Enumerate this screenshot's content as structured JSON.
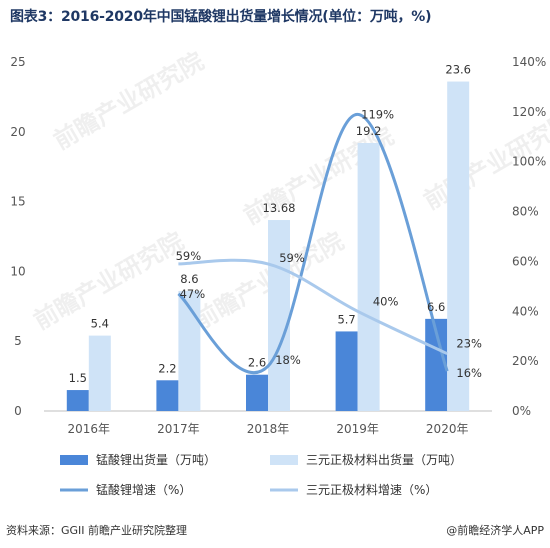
{
  "title": "图表3：2016-2020年中国锰酸锂出货量增长情况(单位：万吨，%)",
  "source": "资料来源：GGII 前瞻产业研究院整理",
  "brand": "@前瞻经济学人APP",
  "watermark": "前瞻产业研究院",
  "chart_data": {
    "type": "bar",
    "categories": [
      "2016年",
      "2017年",
      "2018年",
      "2019年",
      "2020年"
    ],
    "series": [
      {
        "name": "锰酸锂出货量（万吨）",
        "kind": "bar",
        "axis": "left",
        "color": "#4a86d8",
        "values": [
          1.5,
          2.2,
          2.6,
          5.7,
          6.6
        ],
        "labels": [
          "1.5",
          "2.2",
          "2.6",
          "5.7",
          "6.6"
        ]
      },
      {
        "name": "三元正极材料出货量（万吨）",
        "kind": "bar",
        "axis": "left",
        "color": "#cfe3f7",
        "values": [
          5.4,
          8.6,
          13.68,
          19.2,
          23.6
        ],
        "labels": [
          "5.4",
          "8.6",
          "13.68",
          "19.2",
          "23.6"
        ]
      },
      {
        "name": "锰酸锂增速（%）",
        "kind": "line",
        "axis": "right",
        "color": "#6a9fd8",
        "values": [
          null,
          47,
          18,
          119,
          16
        ],
        "labels": [
          "",
          "47%",
          "18%",
          "119%",
          "16%"
        ]
      },
      {
        "name": "三元正极材料增速（%）",
        "kind": "line",
        "axis": "right",
        "color": "#a9c9ec",
        "values": [
          null,
          59,
          59,
          40,
          23
        ],
        "labels": [
          "",
          "59%",
          "59%",
          "40%",
          "23%"
        ]
      }
    ],
    "y_left": {
      "min": 0,
      "max": 25,
      "ticks": [
        0,
        5,
        10,
        15,
        20,
        25
      ]
    },
    "y_right": {
      "min": 0,
      "max": 140,
      "ticks": [
        "0%",
        "20%",
        "40%",
        "60%",
        "80%",
        "100%",
        "120%",
        "140%"
      ]
    },
    "legend_position": "bottom",
    "grid": false
  }
}
